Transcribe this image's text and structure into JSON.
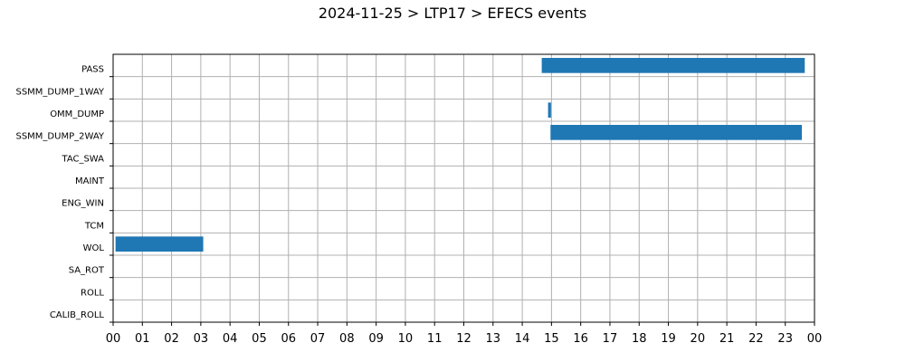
{
  "chart_data": {
    "type": "bar",
    "orientation": "horizontal",
    "title": "2024-11-25 > LTP17 > EFECS events",
    "xlabel": "",
    "ylabel": "",
    "categories": [
      "PASS",
      "SSMM_DUMP_1WAY",
      "OMM_DUMP",
      "SSMM_DUMP_2WAY",
      "TAC_SWA",
      "MAINT",
      "ENG_WIN",
      "TCM",
      "WOL",
      "SA_ROT",
      "ROLL",
      "CALIB_ROLL"
    ],
    "x_ticks": [
      "00",
      "01",
      "02",
      "03",
      "04",
      "05",
      "06",
      "07",
      "08",
      "09",
      "10",
      "11",
      "12",
      "13",
      "14",
      "15",
      "16",
      "17",
      "18",
      "19",
      "20",
      "21",
      "22",
      "23",
      "00"
    ],
    "xlim_hours": [
      0,
      24
    ],
    "grid": true,
    "bar_color": "#1f77b4",
    "events": [
      {
        "category": "PASS",
        "start": "14:40",
        "end": "23:40"
      },
      {
        "category": "OMM_DUMP",
        "start": "14:53",
        "end": "14:59"
      },
      {
        "category": "SSMM_DUMP_2WAY",
        "start": "14:58",
        "end": "23:34"
      },
      {
        "category": "WOL",
        "start": "00:05",
        "end": "03:05"
      }
    ]
  }
}
